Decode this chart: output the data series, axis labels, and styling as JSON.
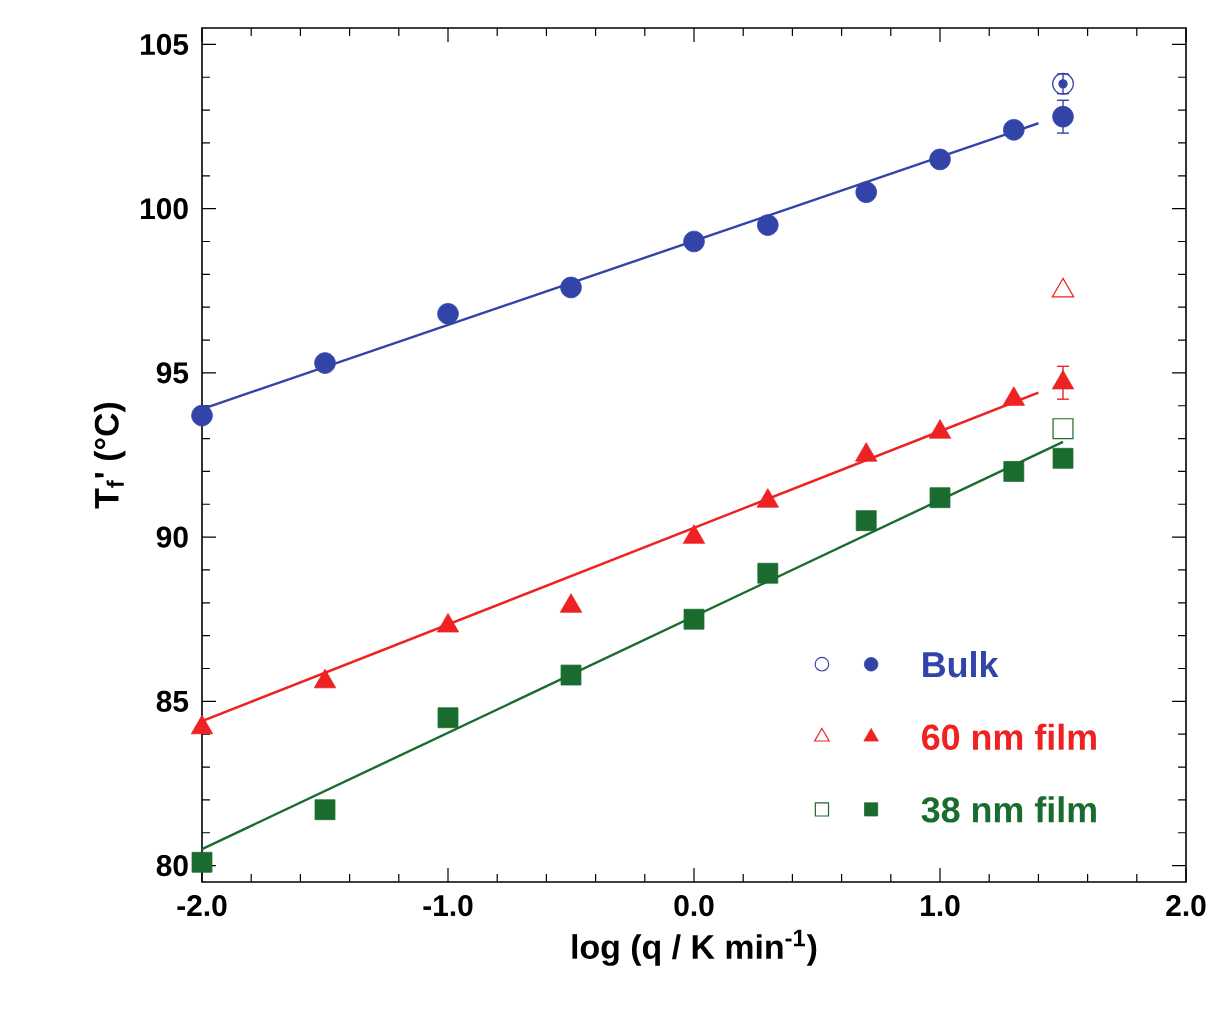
{
  "chart_data": {
    "type": "scatter",
    "xlabel": "log (q / K min$^{-1}$)",
    "ylabel": "T$_{f}$' (°C)",
    "xlim": [
      -2,
      2
    ],
    "ylim": [
      79.5,
      105.5
    ],
    "xticks": [
      {
        "value": -2,
        "label": "-2.0"
      },
      {
        "value": -1,
        "label": "-1.0"
      },
      {
        "value": 0,
        "label": "0.0"
      },
      {
        "value": 1,
        "label": "1.0"
      },
      {
        "value": 2,
        "label": "2.0"
      }
    ],
    "yticks": [
      80,
      85,
      90,
      95,
      100,
      105
    ],
    "grid": false,
    "legend": "bottom right",
    "series": [
      {
        "name": "Bulk",
        "color": "#3344a8",
        "marker": "circle",
        "x": [
          -2,
          -1.5,
          -1,
          -0.5,
          0,
          0.3,
          0.7,
          1,
          1.3,
          1.5
        ],
        "values": [
          93.7,
          95.3,
          96.8,
          97.6,
          99.0,
          99.5,
          100.5,
          101.5,
          102.4,
          102.8
        ],
        "errors": [
          null,
          null,
          null,
          null,
          null,
          null,
          null,
          null,
          null,
          0.5
        ]
      },
      {
        "color": "#3344a8",
        "marker": "circle",
        "x": [
          1.5
        ],
        "values": [
          103.8
        ],
        "errors": [
          0.3
        ]
      },
      {
        "type": "line",
        "color": "#3344a8",
        "marker": "none",
        "x": [
          -2,
          1.4
        ],
        "values": [
          93.9,
          102.6
        ]
      },
      {
        "name": "60 nm film",
        "color": "#ee2222",
        "marker": "triangle",
        "x": [
          -2,
          -1.5,
          -1,
          -0.5,
          0,
          0.3,
          0.7,
          1,
          1.3,
          1.5
        ],
        "values": [
          84.2,
          85.6,
          87.3,
          87.9,
          90.0,
          91.1,
          92.5,
          93.2,
          94.2,
          94.7
        ],
        "errors": [
          null,
          null,
          null,
          null,
          null,
          null,
          null,
          null,
          null,
          0.5
        ]
      },
      {
        "color": "#ee2222",
        "marker": "triangle",
        "x": [
          1.5
        ],
        "values": [
          97.5
        ]
      },
      {
        "type": "line",
        "color": "#ee2222",
        "marker": "none",
        "x": [
          -2,
          1.4
        ],
        "values": [
          84.4,
          94.4
        ]
      },
      {
        "name": "38 nm film",
        "color": "#1a6b2e",
        "marker": "square",
        "x": [
          -2,
          -1.5,
          -1,
          -0.5,
          0,
          0.3,
          0.7,
          1,
          1.3,
          1.5
        ],
        "values": [
          80.1,
          81.7,
          84.5,
          85.8,
          87.5,
          88.9,
          90.5,
          91.2,
          92.0,
          92.4
        ]
      },
      {
        "color": "#1a6b2e",
        "marker": "square",
        "x": [
          1.5
        ],
        "values": [
          93.3
        ]
      },
      {
        "type": "line",
        "color": "#1a6b2e",
        "marker": "none",
        "x": [
          -2,
          1.5
        ],
        "values": [
          80.5,
          92.9
        ]
      }
    ]
  }
}
